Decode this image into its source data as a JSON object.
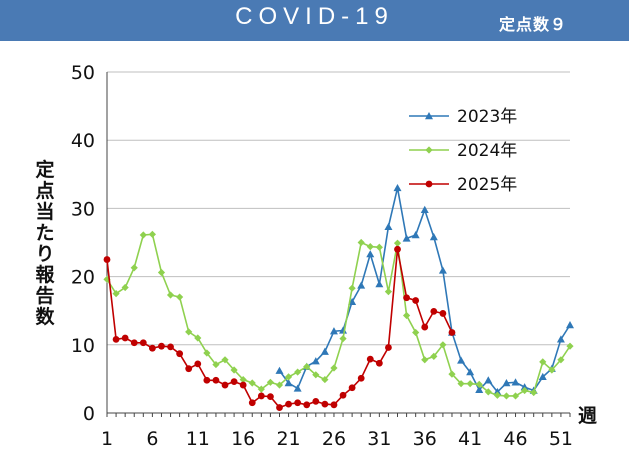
{
  "header": {
    "title": "COVID-19",
    "subtitle": "定点数９"
  },
  "colors": {
    "header_bg": "#4a7ab4",
    "series_2023": "#2f78b7",
    "series_2024": "#8fd14f",
    "series_2025": "#c00000",
    "grid": "#bfbfbf"
  },
  "chart_data": {
    "type": "line",
    "title": "COVID-19",
    "subtitle": "定点数９",
    "xlabel": "週",
    "ylabel": "定点当たり報告数",
    "xlim": [
      1,
      52
    ],
    "ylim": [
      0,
      50
    ],
    "x_ticks": [
      1,
      6,
      11,
      16,
      21,
      26,
      31,
      36,
      41,
      46,
      51
    ],
    "y_ticks": [
      0,
      10,
      20,
      30,
      40,
      50
    ],
    "grid": "horizontal",
    "legend_position": "top-right",
    "series": [
      {
        "name": "2023年",
        "color": "#2f78b7",
        "marker": "triangle",
        "x": [
          20,
          21,
          22,
          23,
          24,
          25,
          26,
          27,
          28,
          29,
          30,
          31,
          32,
          33,
          34,
          35,
          36,
          37,
          38,
          39,
          40,
          41,
          42,
          43,
          44,
          45,
          46,
          47,
          48,
          49,
          50,
          51,
          52
        ],
        "values": [
          6.2,
          4.4,
          3.6,
          6.8,
          7.6,
          9.0,
          12.0,
          12.1,
          16.3,
          18.7,
          23.3,
          18.9,
          27.3,
          33.0,
          25.6,
          26.1,
          29.8,
          25.8,
          20.9,
          11.8,
          7.7,
          6.0,
          3.4,
          4.8,
          3.1,
          4.4,
          4.5,
          3.8,
          3.3,
          5.3,
          6.5,
          10.8,
          12.9
        ]
      },
      {
        "name": "2024年",
        "color": "#8fd14f",
        "marker": "diamond",
        "x": [
          1,
          2,
          3,
          4,
          5,
          6,
          7,
          8,
          9,
          10,
          11,
          12,
          13,
          14,
          15,
          16,
          17,
          18,
          19,
          20,
          21,
          22,
          23,
          24,
          25,
          26,
          27,
          28,
          29,
          30,
          31,
          32,
          33,
          34,
          35,
          36,
          37,
          38,
          39,
          40,
          41,
          42,
          43,
          44,
          45,
          46,
          47,
          48,
          49,
          50,
          51,
          52
        ],
        "values": [
          19.6,
          17.5,
          18.4,
          21.3,
          26.1,
          26.2,
          20.6,
          17.3,
          17.0,
          11.9,
          11.0,
          8.8,
          7.1,
          7.8,
          6.3,
          4.9,
          4.4,
          3.5,
          4.5,
          4.1,
          5.3,
          6.0,
          6.8,
          5.6,
          4.9,
          6.6,
          10.9,
          18.3,
          25.0,
          24.4,
          24.3,
          17.8,
          24.9,
          14.3,
          11.8,
          7.8,
          8.3,
          10.0,
          5.7,
          4.3,
          4.3,
          4.2,
          3.1,
          2.6,
          2.5,
          2.5,
          3.3,
          3.0,
          7.5,
          6.3,
          7.8,
          9.8
        ]
      },
      {
        "name": "2025年",
        "color": "#c00000",
        "marker": "circle",
        "x": [
          1,
          2,
          3,
          4,
          5,
          6,
          7,
          8,
          9,
          10,
          11,
          12,
          13,
          14,
          15,
          16,
          17,
          18,
          19,
          20,
          21,
          22,
          23,
          24,
          25,
          26,
          27,
          28,
          29,
          30,
          31,
          32,
          33,
          34,
          35,
          36,
          37,
          38,
          39
        ],
        "values": [
          22.5,
          10.8,
          11.0,
          10.3,
          10.3,
          9.5,
          9.8,
          9.7,
          8.7,
          6.5,
          7.2,
          4.8,
          4.8,
          4.1,
          4.6,
          4.1,
          1.5,
          2.5,
          2.4,
          0.8,
          1.3,
          1.5,
          1.2,
          1.7,
          1.3,
          1.2,
          2.6,
          3.7,
          5.1,
          7.9,
          7.3,
          9.6,
          24.0,
          16.9,
          16.5,
          12.6,
          14.9,
          14.6,
          11.8
        ]
      }
    ]
  }
}
